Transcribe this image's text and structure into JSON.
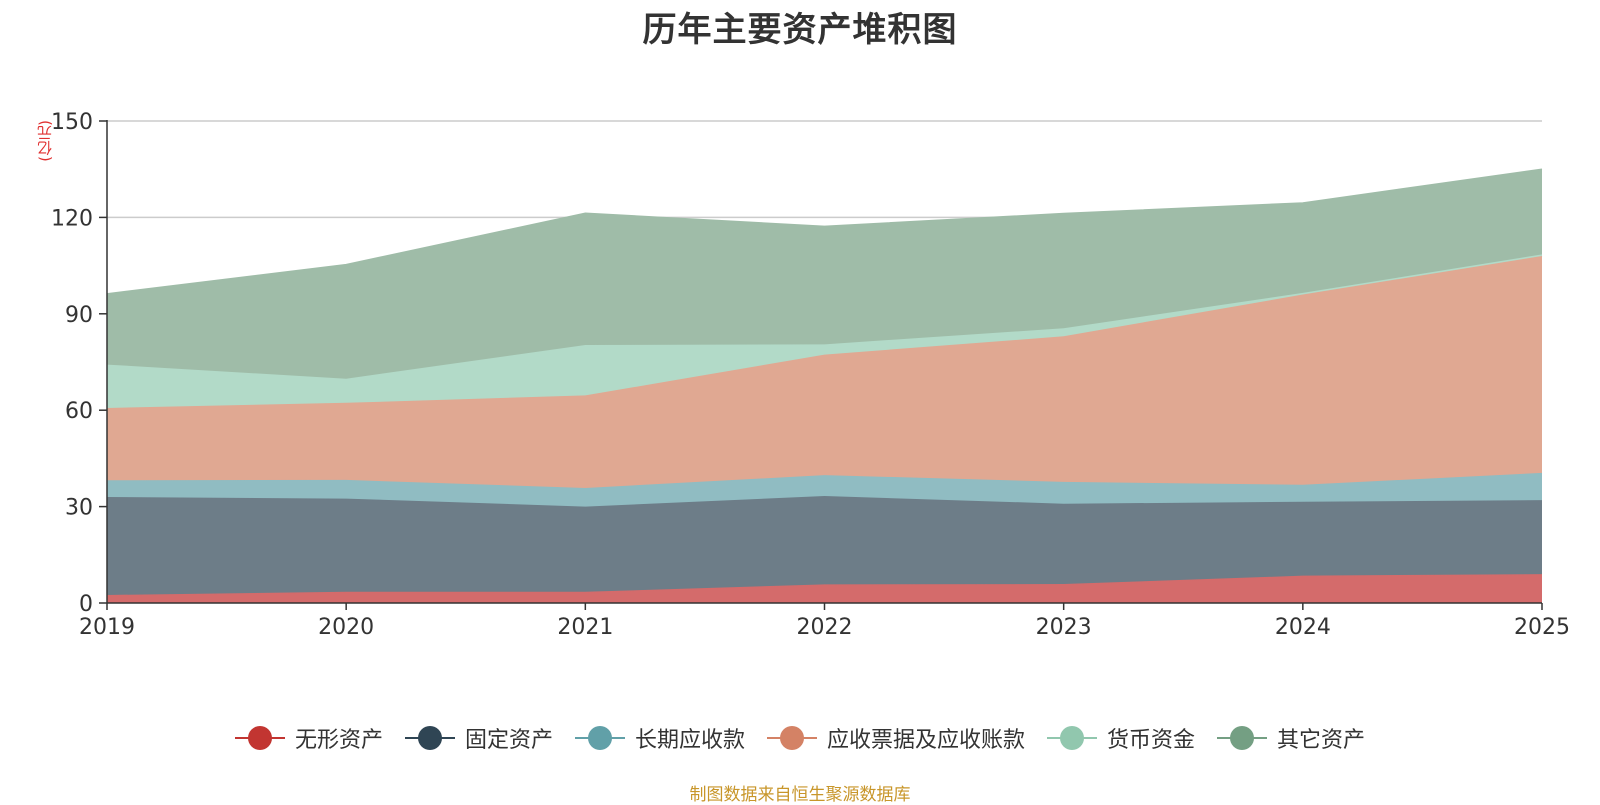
{
  "chart_data": {
    "type": "area",
    "stacked": true,
    "title": "历年主要资产堆积图",
    "unit_label": "(亿元)",
    "footer": "制图数据来自恒生聚源数据库",
    "categories": [
      "2019",
      "2020",
      "2021",
      "2022",
      "2023",
      "2024",
      "2025"
    ],
    "ylim": [
      0,
      150
    ],
    "yticks": [
      0,
      30,
      60,
      90,
      120,
      150
    ],
    "grid": true,
    "legend_position": "bottom",
    "series": [
      {
        "name": "无形资产",
        "values": [
          2.5,
          3.5,
          3.5,
          5.8,
          5.9,
          8.5,
          9.0
        ],
        "color": "#c23531",
        "fill": "#d46b6b"
      },
      {
        "name": "固定资产",
        "values": [
          30.5,
          29.0,
          26.5,
          27.5,
          25.0,
          23.0,
          23.0
        ],
        "color": "#2f4554",
        "fill": "#6d7d88"
      },
      {
        "name": "长期应收款",
        "values": [
          5.2,
          5.8,
          5.8,
          6.5,
          6.8,
          5.3,
          8.5
        ],
        "color": "#61a0a8",
        "fill": "#90bcc2"
      },
      {
        "name": "应收票据及应收账款",
        "values": [
          22.5,
          24.0,
          28.8,
          37.5,
          45.3,
          59.2,
          67.5
        ],
        "color": "#d48265",
        "fill": "#e0a892"
      },
      {
        "name": "货币资金",
        "values": [
          13.5,
          7.5,
          15.7,
          3.2,
          2.5,
          0.5,
          0.5
        ],
        "color": "#91c7ae",
        "fill": "#b2dac8"
      },
      {
        "name": "其它资产",
        "values": [
          22.0,
          35.5,
          41.0,
          36.7,
          35.7,
          28.0,
          26.5
        ],
        "color": "#749f83",
        "fill": "#9fbca8"
      }
    ]
  }
}
